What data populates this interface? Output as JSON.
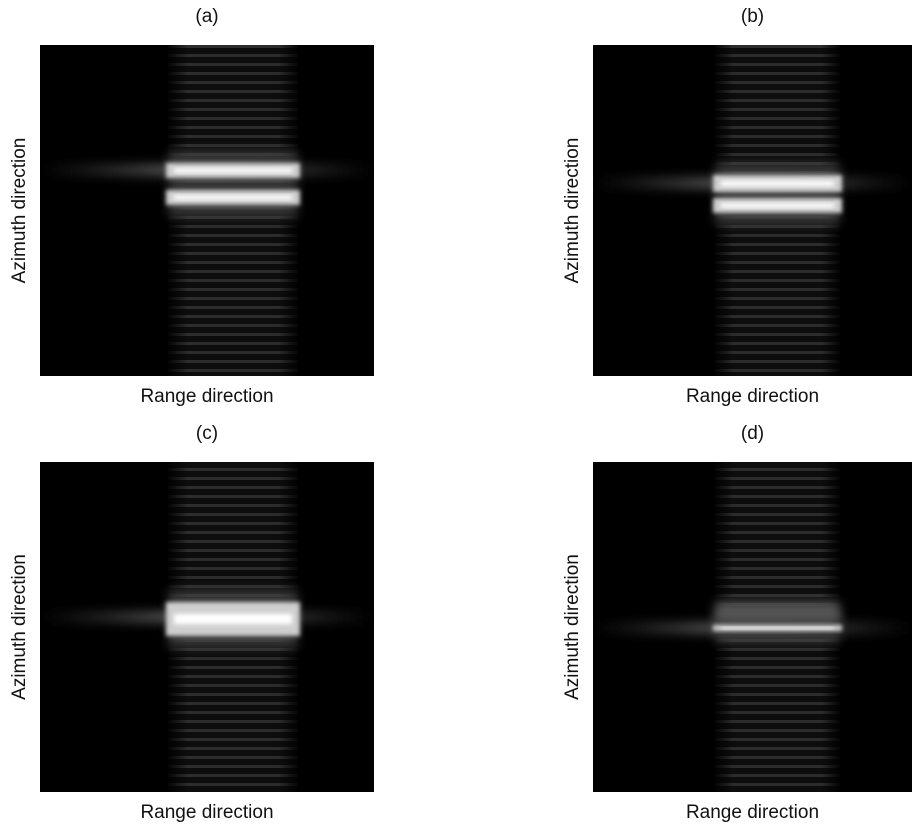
{
  "panels": [
    {
      "label": "(a)",
      "xlabel": "Range direction",
      "ylabel": "Azimuth direction"
    },
    {
      "label": "(b)",
      "xlabel": "Range direction",
      "ylabel": "Azimuth direction"
    },
    {
      "label": "(c)",
      "xlabel": "Range direction",
      "ylabel": "Azimuth direction"
    },
    {
      "label": "(d)",
      "xlabel": "Range direction",
      "ylabel": "Azimuth direction"
    }
  ]
}
